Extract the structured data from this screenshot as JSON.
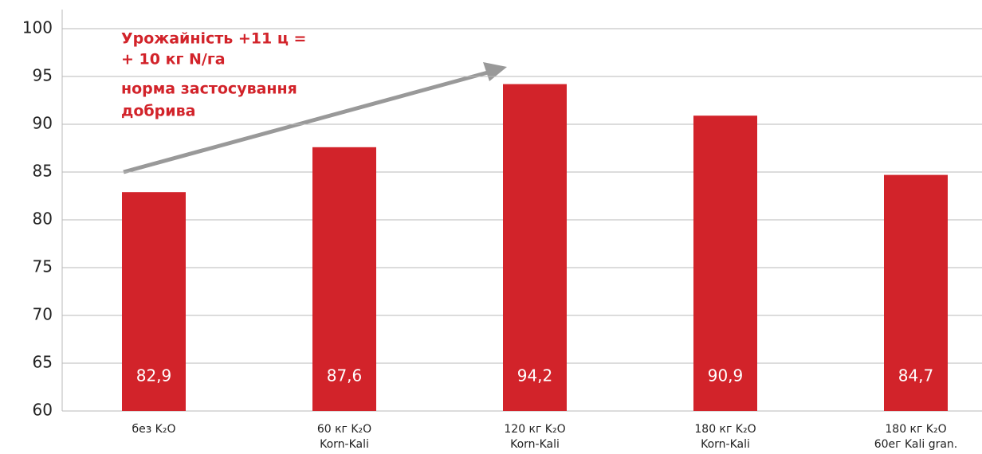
{
  "chart_data": {
    "type": "bar",
    "categories": [
      [
        "без K₂O"
      ],
      [
        "60 кг K₂O",
        "Korn-Kali"
      ],
      [
        "120 кг K₂O",
        "Korn-Kali"
      ],
      [
        "180 кг K₂O",
        "Korn-Kali"
      ],
      [
        "180 кг K₂O",
        "60ег Kali gran."
      ]
    ],
    "values": [
      82.9,
      87.6,
      94.2,
      90.9,
      84.7
    ],
    "value_labels": [
      "82,9",
      "87,6",
      "94,2",
      "90,9",
      "84,7"
    ],
    "color": "#d2232a",
    "ylim": [
      60,
      102
    ],
    "yticks": [
      60,
      65,
      70,
      75,
      80,
      85,
      90,
      95,
      100
    ],
    "grid": true,
    "annotation": [
      "Урожайність +11 ц =",
      "+ 10 кг N/га",
      "норма застосування",
      "добрива"
    ]
  }
}
